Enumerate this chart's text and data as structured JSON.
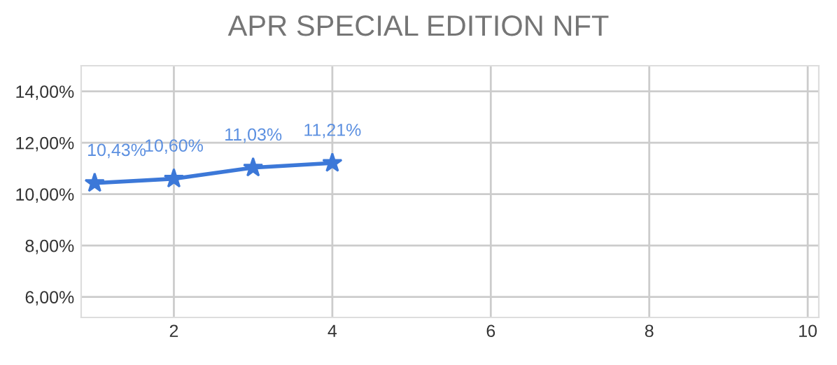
{
  "chart_data": {
    "type": "line",
    "title": "APR SPECIAL EDITION NFT",
    "x": [
      1,
      2,
      3,
      4
    ],
    "series": [
      {
        "color": "#3c78d8",
        "values": [
          10.43,
          10.6,
          11.03,
          11.21
        ],
        "value_labels": [
          "10,43%",
          "10,60%",
          "11,03%",
          "11,21%"
        ]
      }
    ],
    "xlim": [
      0.83,
      10.14
    ],
    "xticks": [
      2,
      4,
      6,
      8,
      10
    ],
    "ylim": [
      5.2,
      15.0
    ],
    "yticks": [
      {
        "value": 6,
        "label": "6,00%"
      },
      {
        "value": 8,
        "label": "8,00%"
      },
      {
        "value": 10,
        "label": "10,00%"
      },
      {
        "value": 12,
        "label": "12,00%"
      },
      {
        "value": 14,
        "label": "14,00%"
      }
    ],
    "grid": true,
    "marker": "star",
    "line_style": "solid",
    "legend": false
  }
}
